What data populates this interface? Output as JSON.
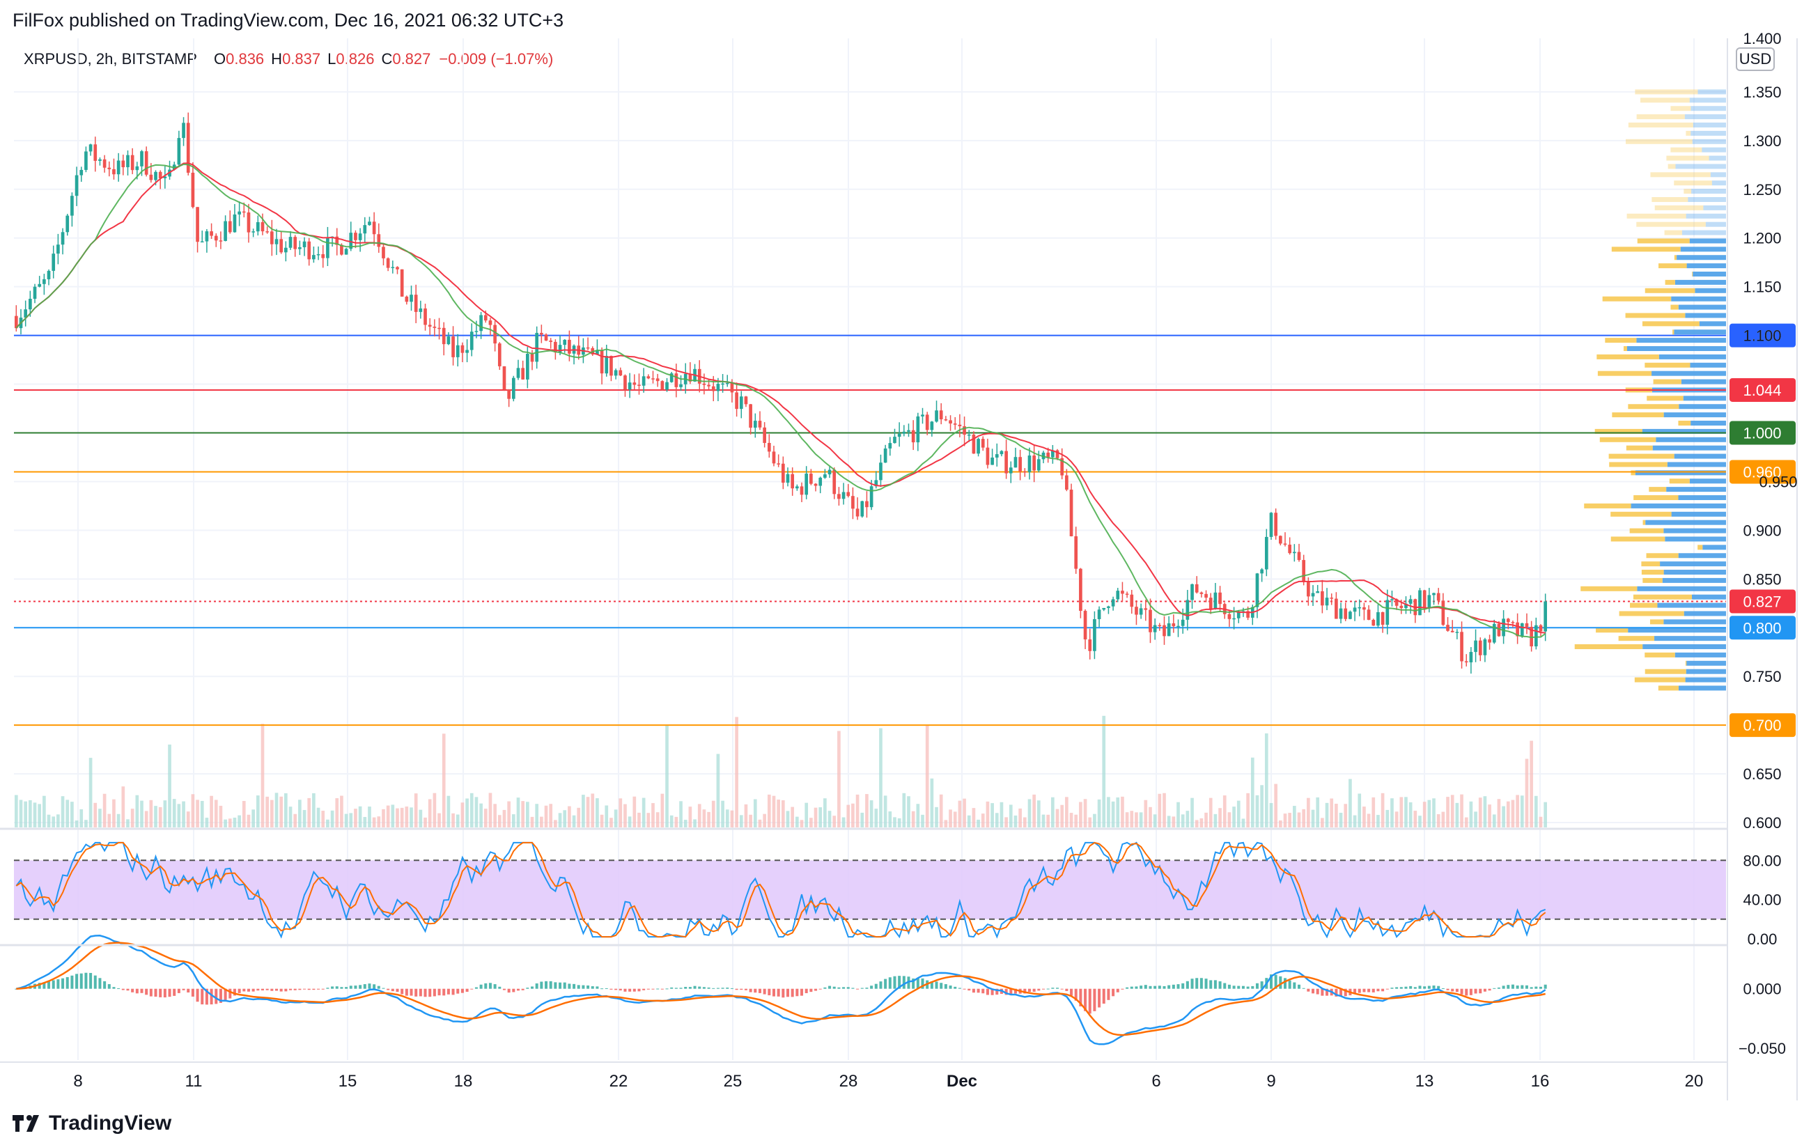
{
  "header": {
    "publisher_text": "FilFox published on TradingView.com, Dec 16, 2021 06:32 UTC+3"
  },
  "legend": {
    "symbol": "XRPUSD, 2h, BITSTAMP",
    "open_label": "O",
    "open": "0.836",
    "high_label": "H",
    "high": "0.837",
    "low_label": "L",
    "low": "0.826",
    "close_label": "C",
    "close": "0.827",
    "change": "−0.009 (−1.07%)"
  },
  "price_axis": {
    "currency": "USD",
    "top_tick": "1.400",
    "ticks": [
      "1.350",
      "1.300",
      "1.250",
      "1.200",
      "1.150",
      "1.100",
      "1.044",
      "1.000",
      "0.960",
      "0.950",
      "0.900",
      "0.850",
      "0.827",
      "0.800",
      "0.750",
      "0.700",
      "0.650",
      "0.600"
    ]
  },
  "footer": {
    "brand": "TradingView"
  },
  "colors": {
    "up": "#26a69a",
    "down": "#ef5350",
    "ma_red": "#f23645",
    "ma_green": "#4caf50",
    "stoch_fill": "#e1c8fb",
    "macd_blue": "#2196f3",
    "macd_orange": "#ff6d00"
  },
  "chart_data": [
    {
      "type": "candlestick",
      "title": "XRPUSD, 2h, BITSTAMP",
      "ylim": [
        0.595,
        1.405
      ],
      "x_ticks": [
        "8",
        "11",
        "15",
        "18",
        "22",
        "25",
        "28",
        "Dec",
        "6",
        "9",
        "13",
        "16",
        "20"
      ],
      "y_ticks": [
        "1.350",
        "1.300",
        "1.250",
        "1.200",
        "1.150",
        "1.100",
        "0.900",
        "0.850",
        "0.750",
        "0.650",
        "0.600"
      ],
      "price_path": [
        {
          "t": 0,
          "v": 1.12
        },
        {
          "t": 0.02,
          "v": 1.16
        },
        {
          "t": 0.04,
          "v": 1.29
        },
        {
          "t": 0.06,
          "v": 1.27
        },
        {
          "t": 0.075,
          "v": 1.28
        },
        {
          "t": 0.09,
          "v": 1.25
        },
        {
          "t": 0.098,
          "v": 1.33
        },
        {
          "t": 0.108,
          "v": 1.19
        },
        {
          "t": 0.13,
          "v": 1.22
        },
        {
          "t": 0.16,
          "v": 1.19
        },
        {
          "t": 0.19,
          "v": 1.19
        },
        {
          "t": 0.21,
          "v": 1.22
        },
        {
          "t": 0.23,
          "v": 1.14
        },
        {
          "t": 0.26,
          "v": 1.08
        },
        {
          "t": 0.28,
          "v": 1.12
        },
        {
          "t": 0.29,
          "v": 1.03
        },
        {
          "t": 0.31,
          "v": 1.095
        },
        {
          "t": 0.35,
          "v": 1.07
        },
        {
          "t": 0.37,
          "v": 1.045
        },
        {
          "t": 0.4,
          "v": 1.065
        },
        {
          "t": 0.43,
          "v": 1.03
        },
        {
          "t": 0.46,
          "v": 0.94
        },
        {
          "t": 0.48,
          "v": 0.96
        },
        {
          "t": 0.5,
          "v": 0.91
        },
        {
          "t": 0.52,
          "v": 0.99
        },
        {
          "t": 0.55,
          "v": 1.02
        },
        {
          "t": 0.58,
          "v": 0.97
        },
        {
          "t": 0.62,
          "v": 0.97
        },
        {
          "t": 0.635,
          "v": 0.78
        },
        {
          "t": 0.65,
          "v": 0.84
        },
        {
          "t": 0.68,
          "v": 0.79
        },
        {
          "t": 0.7,
          "v": 0.84
        },
        {
          "t": 0.73,
          "v": 0.81
        },
        {
          "t": 0.745,
          "v": 0.91
        },
        {
          "t": 0.77,
          "v": 0.83
        },
        {
          "t": 0.8,
          "v": 0.81
        },
        {
          "t": 0.84,
          "v": 0.83
        },
        {
          "t": 0.86,
          "v": 0.77
        },
        {
          "t": 0.88,
          "v": 0.8
        },
        {
          "t": 0.9,
          "v": 0.79
        },
        {
          "t": 0.91,
          "v": 0.827
        }
      ],
      "horizontal_levels": [
        {
          "value": 1.1,
          "label": "1.100",
          "color": "#2962ff"
        },
        {
          "value": 1.044,
          "label": "1.044",
          "color": "#f23645"
        },
        {
          "value": 1.0,
          "label": "1.000",
          "color": "#2e7d32"
        },
        {
          "value": 0.96,
          "label": "0.960",
          "color": "#ff9800"
        },
        {
          "value": 0.827,
          "label": "0.827",
          "color": "#f23645",
          "dotted": true
        },
        {
          "value": 0.8,
          "label": "0.800",
          "color": "#2196f3"
        },
        {
          "value": 0.7,
          "label": "0.700",
          "color": "#ff9800"
        }
      ],
      "moving_averages": [
        {
          "color": "#f23645"
        },
        {
          "color": "#4caf50"
        }
      ],
      "volume_profile": "right"
    },
    {
      "type": "line",
      "ylim": [
        -5,
        110
      ],
      "y_ticks": [
        "80.00",
        "40.00",
        "0.00"
      ],
      "bands": [
        20,
        80
      ]
    },
    {
      "type": "line",
      "ylim": [
        -0.06,
        0.035
      ],
      "y_ticks": [
        "0.000",
        "−0.050"
      ]
    }
  ]
}
